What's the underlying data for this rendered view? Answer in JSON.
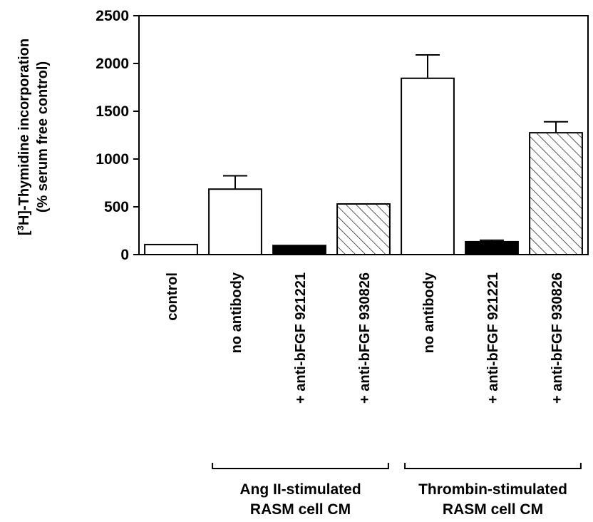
{
  "chart_data": {
    "type": "bar",
    "ylabel_line1_prefix": "[",
    "ylabel_line1_sup": "3",
    "ylabel_line1_rest": "H]-Thymidine incorporation",
    "ylabel_line2": "(% serum free control)",
    "ylim": [
      0,
      2500
    ],
    "yticks": [
      "0",
      "500",
      "1000",
      "1500",
      "2000",
      "2500"
    ],
    "grid": false,
    "categories": [
      "control",
      "no antibody",
      "+ anti-bFGF 921221",
      "+ anti-bFGF 930826",
      "no antibody",
      "+ anti-bFGF 921221",
      "+ anti-bFGF 930826"
    ],
    "values": [
      105,
      685,
      95,
      530,
      1845,
      135,
      1275
    ],
    "errors": [
      0,
      140,
      0,
      0,
      245,
      15,
      115
    ],
    "fills": [
      "white",
      "white",
      "black",
      "hatch",
      "white",
      "black",
      "hatch"
    ],
    "groups": [
      {
        "label_line1": "Ang II-stimulated",
        "label_line2": "RASM cell CM",
        "from": 1,
        "to": 3
      },
      {
        "label_line1": "Thrombin-stimulated",
        "label_line2": "RASM cell CM",
        "from": 4,
        "to": 6
      }
    ]
  }
}
